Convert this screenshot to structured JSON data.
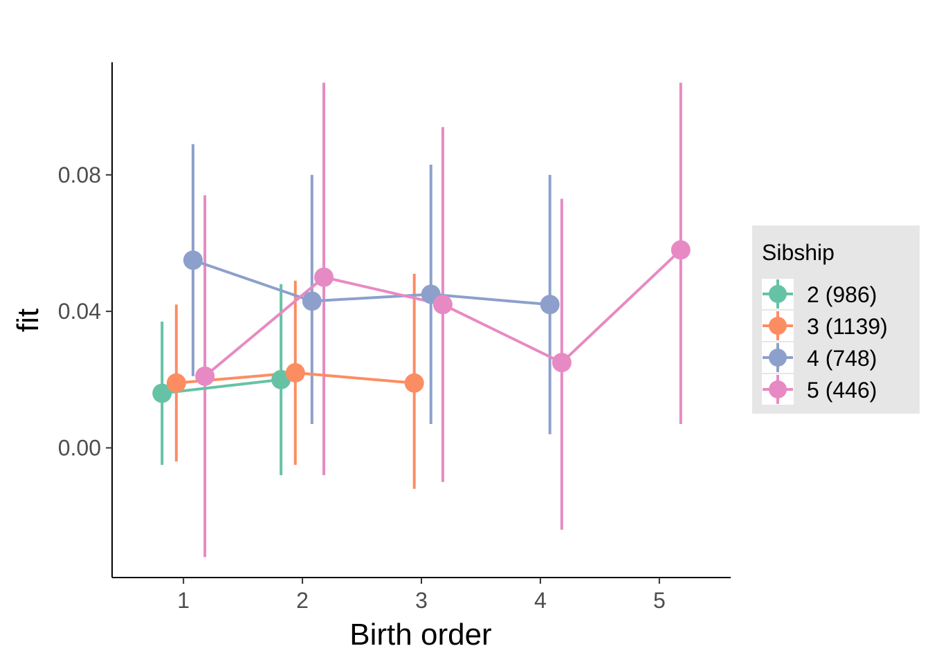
{
  "chart_data": {
    "type": "line",
    "title": "",
    "xlabel": "Birth order",
    "ylabel": "fit",
    "x_ticks": [
      "1",
      "2",
      "3",
      "4",
      "5"
    ],
    "y_ticks": [
      "0.00",
      "0.04",
      "0.08"
    ],
    "y_tick_values": [
      0.0,
      0.04,
      0.08
    ],
    "xlim": [
      0.4,
      5.6
    ],
    "ylim": [
      -0.038,
      0.113
    ],
    "grid": false,
    "legend": {
      "title": "Sibship",
      "position": "right",
      "entries": [
        "2 (986)",
        "3 (1139)",
        "4 (748)",
        "5 (446)"
      ]
    },
    "series": [
      {
        "name": "2 (986)",
        "color": "#66C2A5",
        "dodge": -0.18,
        "points": [
          {
            "x": 1,
            "y": 0.016,
            "lower": -0.005,
            "upper": 0.037
          },
          {
            "x": 2,
            "y": 0.02,
            "lower": -0.008,
            "upper": 0.048
          }
        ]
      },
      {
        "name": "3 (1139)",
        "color": "#FC8D62",
        "dodge": -0.06,
        "points": [
          {
            "x": 1,
            "y": 0.019,
            "lower": -0.004,
            "upper": 0.042
          },
          {
            "x": 2,
            "y": 0.022,
            "lower": -0.005,
            "upper": 0.049
          },
          {
            "x": 3,
            "y": 0.019,
            "lower": -0.012,
            "upper": 0.051
          }
        ]
      },
      {
        "name": "4 (748)",
        "color": "#8DA0CB",
        "dodge": 0.08,
        "points": [
          {
            "x": 1,
            "y": 0.055,
            "lower": 0.021,
            "upper": 0.089
          },
          {
            "x": 2,
            "y": 0.043,
            "lower": 0.007,
            "upper": 0.08
          },
          {
            "x": 3,
            "y": 0.045,
            "lower": 0.007,
            "upper": 0.083
          },
          {
            "x": 4,
            "y": 0.042,
            "lower": 0.004,
            "upper": 0.08
          }
        ]
      },
      {
        "name": "5 (446)",
        "color": "#E78AC3",
        "dodge": 0.18,
        "points": [
          {
            "x": 1,
            "y": 0.021,
            "lower": -0.032,
            "upper": 0.074
          },
          {
            "x": 2,
            "y": 0.05,
            "lower": -0.008,
            "upper": 0.107
          },
          {
            "x": 3,
            "y": 0.042,
            "lower": -0.01,
            "upper": 0.094
          },
          {
            "x": 4,
            "y": 0.025,
            "lower": -0.024,
            "upper": 0.073
          },
          {
            "x": 5,
            "y": 0.058,
            "lower": 0.007,
            "upper": 0.107
          }
        ]
      }
    ]
  }
}
